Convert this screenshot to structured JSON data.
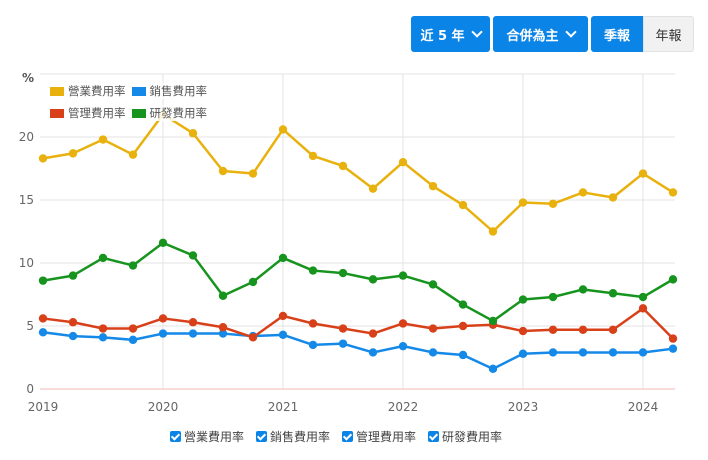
{
  "toolbar": {
    "range_label": "近 5 年",
    "basis_label": "合併為主",
    "quarterly_label": "季報",
    "annual_label": "年報",
    "active_period": "quarterly",
    "accent_color": "#0a84e6"
  },
  "legend": {
    "items": [
      {
        "label": "營業費用率",
        "color": "#e8b10e"
      },
      {
        "label": "銷售費用率",
        "color": "#1589e8"
      },
      {
        "label": "管理費用率",
        "color": "#d8401a"
      },
      {
        "label": "研發費用率",
        "color": "#16941e"
      }
    ]
  },
  "checkboxes": [
    {
      "label": "營業費用率",
      "checked": true
    },
    {
      "label": "銷售費用率",
      "checked": true
    },
    {
      "label": "管理費用率",
      "checked": true
    },
    {
      "label": "研發費用率",
      "checked": true
    }
  ],
  "chart_data": {
    "type": "line",
    "title": "",
    "xlabel": "",
    "ylabel": "%",
    "ylim": [
      0,
      22
    ],
    "yticks": [
      0,
      5,
      10,
      15,
      20
    ],
    "xtick_labels": [
      "2019",
      "2020",
      "2021",
      "2022",
      "2023",
      "2024"
    ],
    "grid": true,
    "legend_position": "top-left",
    "x": [
      "2019Q1",
      "2019Q2",
      "2019Q3",
      "2019Q4",
      "2020Q1",
      "2020Q2",
      "2020Q3",
      "2020Q4",
      "2021Q1",
      "2021Q2",
      "2021Q3",
      "2021Q4",
      "2022Q1",
      "2022Q2",
      "2022Q3",
      "2022Q4",
      "2023Q1",
      "2023Q2",
      "2023Q3",
      "2023Q4",
      "2024Q1",
      "2024Q2"
    ],
    "series": [
      {
        "name": "營業費用率",
        "color": "#e8b10e",
        "values": [
          18.3,
          18.7,
          19.8,
          18.6,
          21.8,
          20.3,
          17.3,
          17.1,
          20.6,
          18.5,
          17.7,
          15.9,
          18.0,
          16.1,
          14.6,
          12.5,
          14.8,
          14.7,
          15.6,
          15.2,
          17.1,
          15.6
        ]
      },
      {
        "name": "銷售費用率",
        "color": "#1589e8",
        "values": [
          4.5,
          4.2,
          4.1,
          3.9,
          4.4,
          4.4,
          4.4,
          4.2,
          4.3,
          3.5,
          3.6,
          2.9,
          3.4,
          2.9,
          2.7,
          1.6,
          2.8,
          2.9,
          2.9,
          2.9,
          2.9,
          3.2
        ]
      },
      {
        "name": "管理費用率",
        "color": "#d8401a",
        "values": [
          5.6,
          5.3,
          4.8,
          4.8,
          5.6,
          5.3,
          4.9,
          4.1,
          5.8,
          5.2,
          4.8,
          4.4,
          5.2,
          4.8,
          5.0,
          5.1,
          4.6,
          4.7,
          4.7,
          4.7,
          6.4,
          4.0
        ]
      },
      {
        "name": "研發費用率",
        "color": "#16941e",
        "values": [
          8.6,
          9.0,
          10.4,
          9.8,
          11.6,
          10.6,
          7.4,
          8.5,
          10.4,
          9.4,
          9.2,
          8.7,
          9.0,
          8.3,
          6.7,
          5.4,
          7.1,
          7.3,
          7.9,
          7.6,
          7.3,
          8.7
        ]
      }
    ]
  }
}
